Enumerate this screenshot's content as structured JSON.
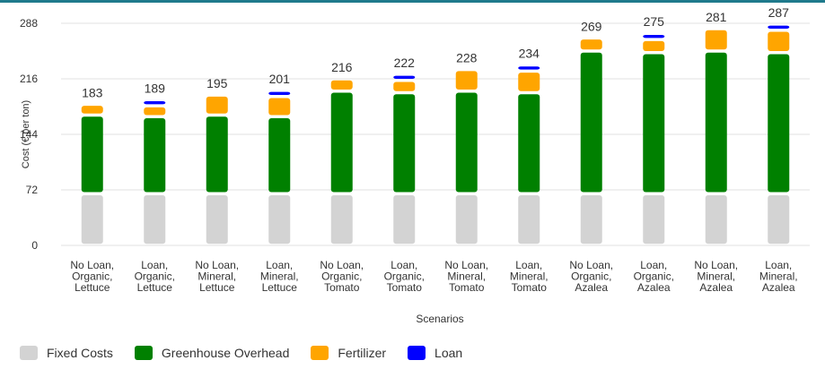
{
  "chart_data": {
    "type": "bar",
    "stacked": true,
    "xlabel": "Scenarios",
    "ylabel": "Cost (€ per ton)",
    "ylim": [
      0,
      288
    ],
    "yticks": [
      0,
      72,
      144,
      216,
      288
    ],
    "grid": "horizontal",
    "legend_position": "bottom-left",
    "categories": [
      [
        "No Loan,",
        "Organic,",
        "Lettuce"
      ],
      [
        "Loan,",
        "Organic,",
        "Lettuce"
      ],
      [
        "No Loan,",
        "Mineral,",
        "Lettuce"
      ],
      [
        "Loan,",
        "Mineral,",
        "Lettuce"
      ],
      [
        "No Loan,",
        "Organic,",
        "Tomato"
      ],
      [
        "Loan,",
        "Organic,",
        "Tomato"
      ],
      [
        "No Loan,",
        "Mineral,",
        "Tomato"
      ],
      [
        "Loan,",
        "Mineral,",
        "Tomato"
      ],
      [
        "No Loan,",
        "Organic,",
        "Azalea"
      ],
      [
        "Loan,",
        "Organic,",
        "Azalea"
      ],
      [
        "No Loan,",
        "Mineral,",
        "Azalea"
      ],
      [
        "Loan,",
        "Mineral,",
        "Azalea"
      ]
    ],
    "series": [
      {
        "name": "Fixed Costs",
        "color": "#d3d3d3",
        "values": [
          67,
          67,
          67,
          67,
          67,
          67,
          67,
          67,
          67,
          67,
          67,
          67
        ]
      },
      {
        "name": "Greenhouse Overhead",
        "color": "#008000",
        "values": [
          102,
          100,
          102,
          100,
          133,
          131,
          133,
          131,
          185,
          183,
          185,
          183
        ]
      },
      {
        "name": "Fertilizer",
        "color": "#ffa500",
        "values": [
          14,
          14,
          26,
          26,
          16,
          16,
          28,
          28,
          17,
          17,
          29,
          29
        ]
      },
      {
        "name": "Loan",
        "color": "#0000ff",
        "values": [
          0,
          8,
          0,
          8,
          0,
          8,
          0,
          8,
          0,
          8,
          0,
          8
        ]
      }
    ],
    "totals": [
      183,
      189,
      195,
      201,
      216,
      222,
      228,
      234,
      269,
      275,
      281,
      287
    ]
  }
}
